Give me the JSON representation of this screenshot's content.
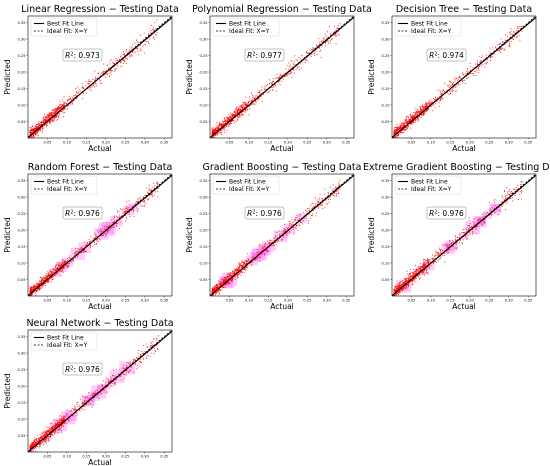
{
  "chart_data": [
    {
      "type": "scatter",
      "title": "Linear Regression − Testing Data",
      "xlabel": "Actual",
      "ylabel": "Predicted",
      "r2": "0.973",
      "xticks": [
        "0.05",
        "0.10",
        "0.15",
        "0.20",
        "0.25",
        "0.30",
        "0.35"
      ],
      "yticks": [
        "0.05",
        "0.10",
        "0.15",
        "0.20",
        "0.25",
        "0.30",
        "0.35"
      ],
      "xlim": [
        0.0,
        0.37
      ],
      "ylim": [
        0.0,
        0.37
      ],
      "legend": [
        "Best Fit Line",
        "Ideal Fit: X=Y"
      ],
      "legend_position": "top-left",
      "best_fit": {
        "slope": 0.973,
        "intercept": 0.0055
      },
      "scatter_spread": 0.008,
      "density_overlay": false
    },
    {
      "type": "scatter",
      "title": "Polynomial Regression − Testing Data",
      "xlabel": "Actual",
      "ylabel": "Predicted",
      "r2": "0.977",
      "xticks": [
        "0.05",
        "0.10",
        "0.15",
        "0.20",
        "0.25",
        "0.30",
        "0.35"
      ],
      "yticks": [
        "0.05",
        "0.10",
        "0.15",
        "0.20",
        "0.25",
        "0.30",
        "0.35"
      ],
      "xlim": [
        0.0,
        0.37
      ],
      "ylim": [
        0.0,
        0.37
      ],
      "legend": [
        "Best Fit Line",
        "Ideal Fit: X=Y"
      ],
      "legend_position": "top-left",
      "best_fit": {
        "slope": 0.977,
        "intercept": 0.005
      },
      "scatter_spread": 0.0075,
      "density_overlay": false
    },
    {
      "type": "scatter",
      "title": "Decision Tree − Testing Data",
      "xlabel": "Actual",
      "ylabel": "Predicted",
      "r2": "0.974",
      "xticks": [
        "0.05",
        "0.10",
        "0.15",
        "0.20",
        "0.25",
        "0.30",
        "0.35"
      ],
      "yticks": [
        "0.05",
        "0.10",
        "0.15",
        "0.20",
        "0.25",
        "0.30",
        "0.35"
      ],
      "xlim": [
        0.0,
        0.37
      ],
      "ylim": [
        0.0,
        0.37
      ],
      "legend": [
        "Best Fit Line",
        "Ideal Fit: X=Y"
      ],
      "legend_position": "top-left",
      "best_fit": {
        "slope": 0.974,
        "intercept": 0.0055
      },
      "scatter_spread": 0.008,
      "density_overlay": false
    },
    {
      "type": "scatter",
      "title": "Random Forest − Testing Data",
      "xlabel": "Actual",
      "ylabel": "Predicted",
      "r2": "0.976",
      "xticks": [
        "0.05",
        "0.10",
        "0.15",
        "0.20",
        "0.25",
        "0.30",
        "0.35"
      ],
      "yticks": [
        "0.05",
        "0.10",
        "0.15",
        "0.20",
        "0.25",
        "0.30",
        "0.35"
      ],
      "xlim": [
        0.0,
        0.37
      ],
      "ylim": [
        0.0,
        0.37
      ],
      "legend": [
        "Best Fit Line",
        "Ideal Fit: X=Y"
      ],
      "legend_position": "top-left",
      "best_fit": {
        "slope": 0.976,
        "intercept": 0.005
      },
      "scatter_spread": 0.0075,
      "density_overlay": true
    },
    {
      "type": "scatter",
      "title": "Gradient Boosting − Testing Data",
      "xlabel": "Actual",
      "ylabel": "Predicted",
      "r2": "0.976",
      "xticks": [
        "0.05",
        "0.10",
        "0.15",
        "0.20",
        "0.25",
        "0.30",
        "0.35"
      ],
      "yticks": [
        "0.05",
        "0.10",
        "0.15",
        "0.20",
        "0.25",
        "0.30",
        "0.35"
      ],
      "xlim": [
        0.0,
        0.37
      ],
      "ylim": [
        0.0,
        0.37
      ],
      "legend": [
        "Best Fit Line",
        "Ideal Fit: X=Y"
      ],
      "legend_position": "top-left",
      "best_fit": {
        "slope": 0.976,
        "intercept": 0.005
      },
      "scatter_spread": 0.0075,
      "density_overlay": true
    },
    {
      "type": "scatter",
      "title": "Extreme Gradient Boosting − Testing Data",
      "xlabel": "Actual",
      "ylabel": "Predicted",
      "r2": "0.976",
      "xticks": [
        "0.05",
        "0.10",
        "0.15",
        "0.20",
        "0.25",
        "0.30",
        "0.35"
      ],
      "yticks": [
        "0.05",
        "0.10",
        "0.15",
        "0.20",
        "0.25",
        "0.30",
        "0.35"
      ],
      "xlim": [
        0.0,
        0.37
      ],
      "ylim": [
        0.0,
        0.37
      ],
      "legend": [
        "Best Fit Line",
        "Ideal Fit: X=Y"
      ],
      "legend_position": "top-left",
      "best_fit": {
        "slope": 0.976,
        "intercept": 0.005
      },
      "scatter_spread": 0.0085,
      "density_overlay": true
    },
    {
      "type": "scatter",
      "title": "Neural Network − Testing Data",
      "xlabel": "Actual",
      "ylabel": "Predicted",
      "r2": "0.976",
      "xticks": [
        "0.05",
        "0.10",
        "0.15",
        "0.20",
        "0.25",
        "0.30",
        "0.35"
      ],
      "yticks": [
        "0.05",
        "0.10",
        "0.15",
        "0.20",
        "0.25",
        "0.30",
        "0.35"
      ],
      "xlim": [
        0.0,
        0.37
      ],
      "ylim": [
        0.0,
        0.37
      ],
      "legend": [
        "Best Fit Line",
        "Ideal Fit: X=Y"
      ],
      "legend_position": "top-left",
      "best_fit": {
        "slope": 0.976,
        "intercept": 0.005
      },
      "scatter_spread": 0.0075,
      "density_overlay": true
    }
  ],
  "colors": {
    "points": "#ff0000",
    "best_fit_line": "#000000",
    "ideal_line": "#000000",
    "density": "#ff66ff",
    "highlight": "#7a7a00"
  }
}
